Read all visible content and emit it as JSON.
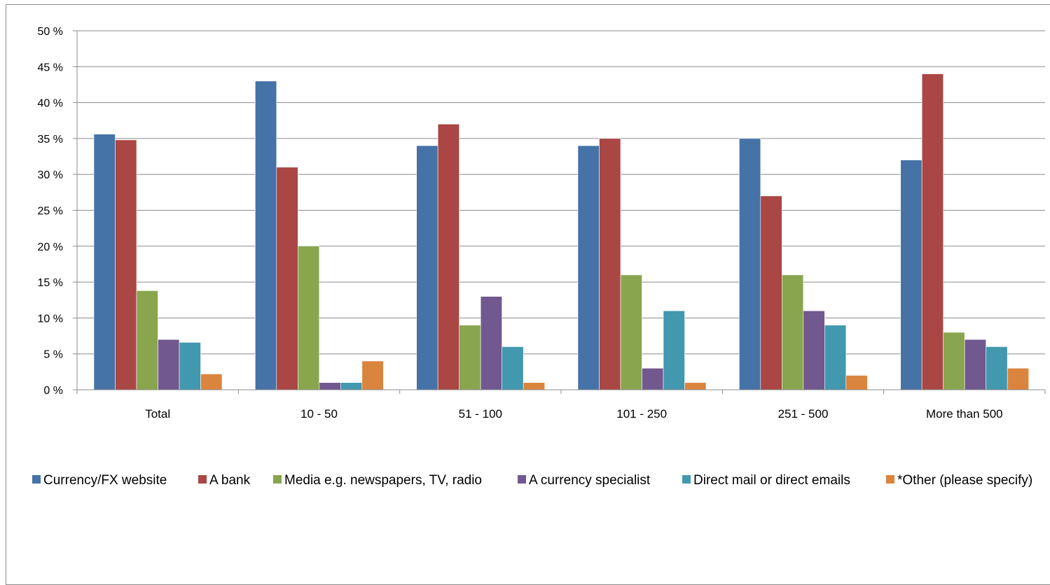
{
  "chart_data": {
    "type": "bar",
    "title": "",
    "xlabel": "",
    "ylabel": "",
    "ylim": [
      0,
      50
    ],
    "yticks": [
      0,
      5,
      10,
      15,
      20,
      25,
      30,
      35,
      40,
      45,
      50
    ],
    "ytick_suffix": " %",
    "grid": true,
    "legend_position": "bottom",
    "categories": [
      "Total",
      "10 - 50",
      "51 - 100",
      "101 - 250",
      "251 - 500",
      "More than 500"
    ],
    "series": [
      {
        "name": "Currency/FX website",
        "color": "#4572A7",
        "values": [
          35.6,
          43,
          34,
          34,
          35,
          32
        ]
      },
      {
        "name": "A bank",
        "color": "#AA4643",
        "values": [
          34.8,
          31,
          37,
          35,
          27,
          44
        ]
      },
      {
        "name": "Media e.g. newspapers, TV, radio",
        "color": "#89A54E",
        "values": [
          13.8,
          20,
          9,
          16,
          16,
          8
        ]
      },
      {
        "name": "A currency specialist",
        "color": "#71588F",
        "values": [
          7,
          1,
          13,
          3,
          11,
          7
        ]
      },
      {
        "name": "Direct mail or direct emails",
        "color": "#4198AF",
        "values": [
          6.6,
          1,
          6,
          11,
          9,
          6
        ]
      },
      {
        "name": "*Other (please specify)",
        "color": "#DB843D",
        "values": [
          2.2,
          4,
          1,
          1,
          2,
          3
        ]
      }
    ]
  }
}
